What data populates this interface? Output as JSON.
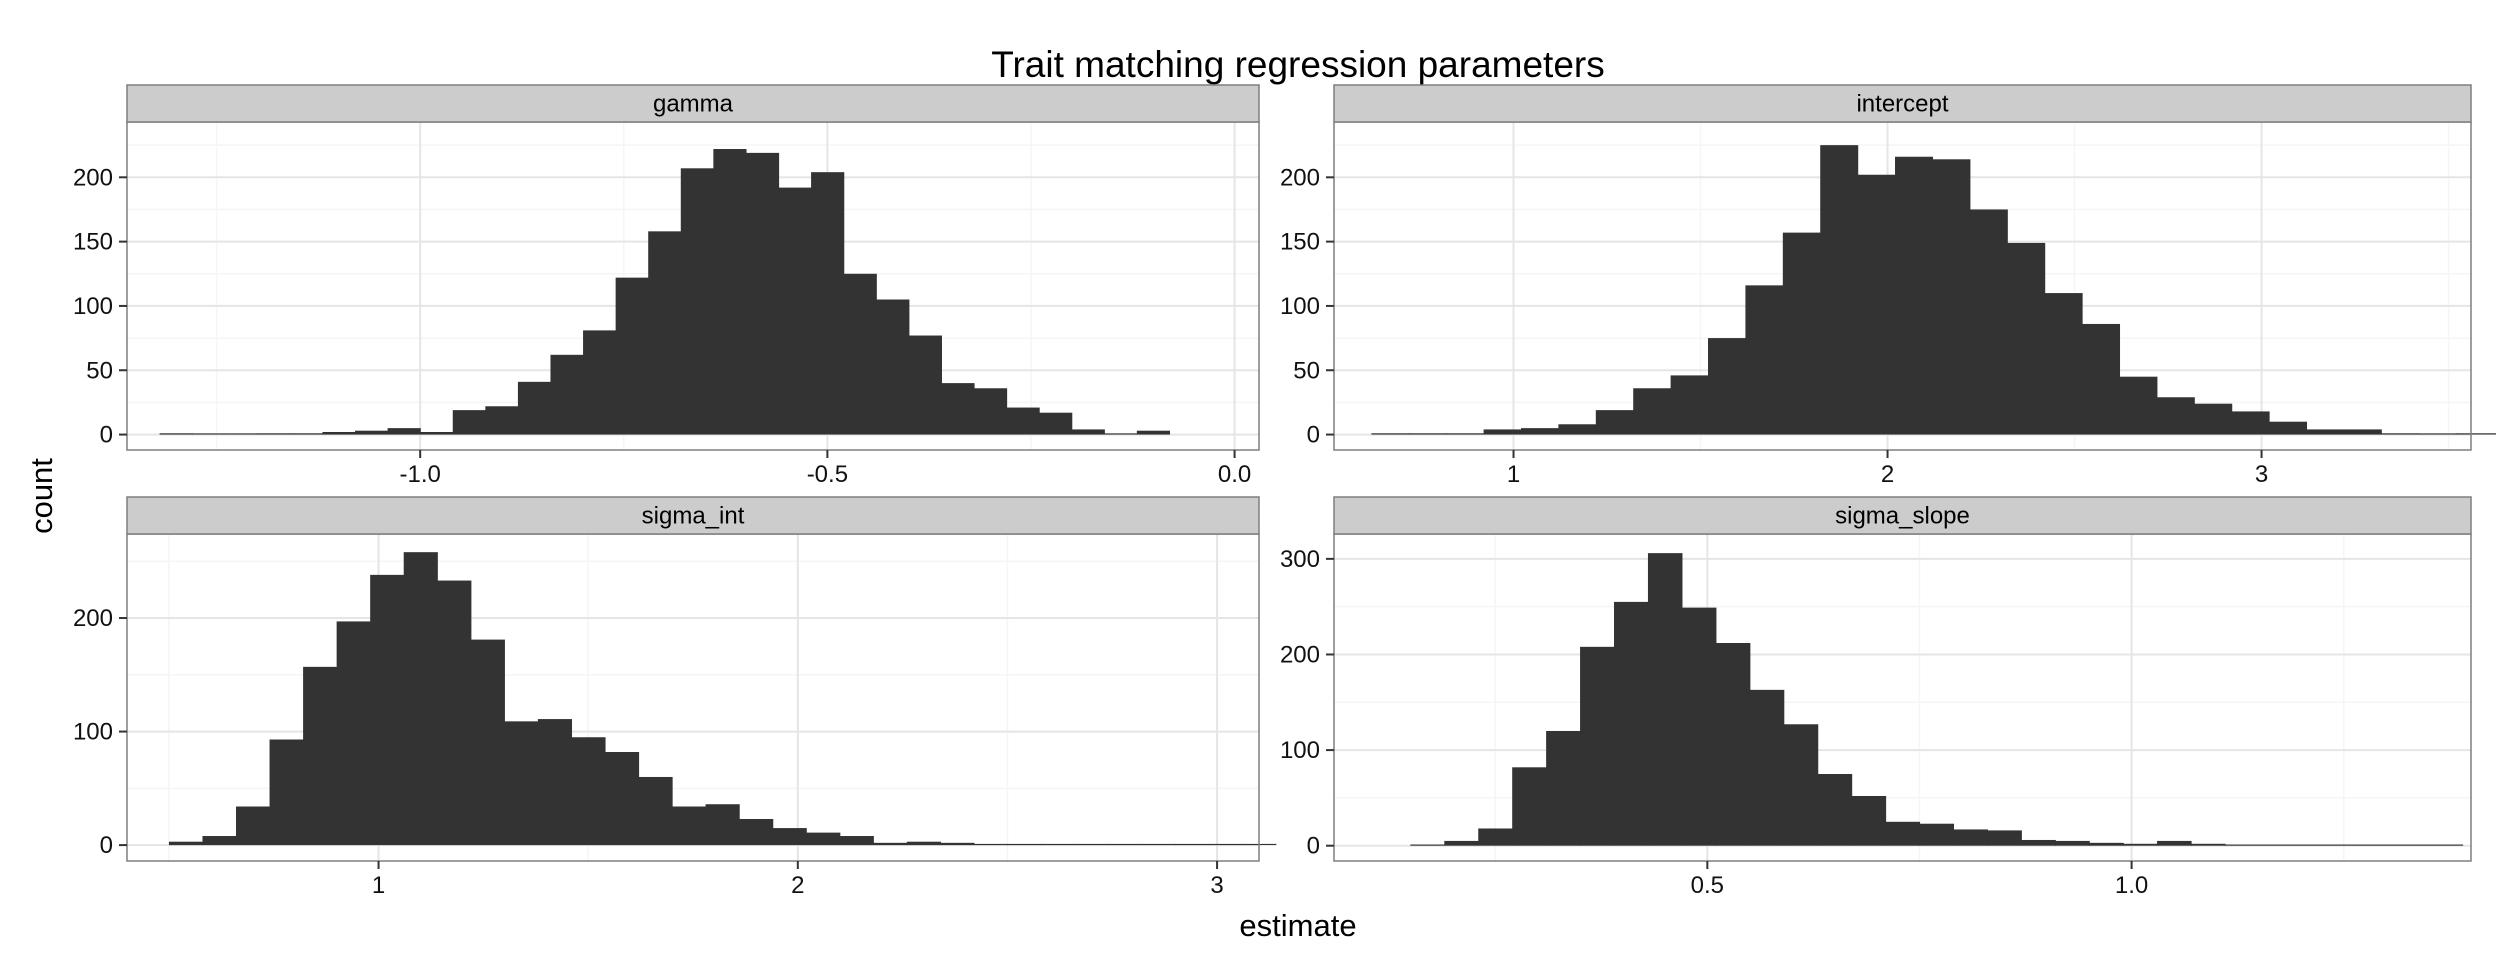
{
  "chart_data": {
    "type": "bar",
    "title": "Trait matching regression parameters",
    "xlabel": "estimate",
    "ylabel": "count",
    "grid": true,
    "legend": "none",
    "colors": {
      "bar": "#333333",
      "strip": "#cccccc",
      "panel_border": "#7f7f7f",
      "grid_major": "#e5e5e5",
      "grid_minor": "#f5f5f5"
    },
    "panels": [
      {
        "strip": "gamma",
        "xlim": [
          -1.36,
          0.03
        ],
        "ylim": [
          -12,
          243
        ],
        "xticks": [
          -1.0,
          -0.5,
          0.0
        ],
        "xtick_labels": [
          "-1.0",
          "-0.5",
          "0.0"
        ],
        "yticks": [
          0,
          50,
          100,
          150,
          200
        ],
        "ytick_labels": [
          "0",
          "50",
          "100",
          "150",
          "200"
        ],
        "bin_start": -1.32,
        "binwidth": 0.04,
        "counts": [
          1,
          0,
          0,
          1,
          1,
          2,
          3,
          5,
          2,
          19,
          22,
          41,
          62,
          81,
          122,
          158,
          207,
          222,
          219,
          192,
          204,
          125,
          105,
          77,
          40,
          36,
          21,
          17,
          4,
          0,
          3
        ]
      },
      {
        "strip": "intercept",
        "xlim": [
          0.52,
          3.56
        ],
        "ylim": [
          -12,
          243
        ],
        "xticks": [
          1,
          2,
          3
        ],
        "xtick_labels": [
          "1",
          "2",
          "3"
        ],
        "yticks": [
          0,
          50,
          100,
          150,
          200
        ],
        "ytick_labels": [
          "0",
          "50",
          "100",
          "150",
          "200"
        ],
        "bin_start": 0.62,
        "binwidth": 0.1,
        "counts": [
          1,
          1,
          1,
          4,
          5,
          8,
          19,
          36,
          46,
          75,
          116,
          157,
          225,
          202,
          216,
          214,
          175,
          149,
          110,
          86,
          45,
          29,
          24,
          18,
          10,
          4,
          4,
          1,
          0,
          1,
          1
        ]
      },
      {
        "strip": "sigma_int",
        "xlim": [
          0.4,
          3.1
        ],
        "ylim": [
          -14,
          274
        ],
        "xticks": [
          1,
          2,
          3
        ],
        "xtick_labels": [
          "1",
          "2",
          "3"
        ],
        "yticks": [
          0,
          100,
          200
        ],
        "ytick_labels": [
          "0",
          "100",
          "200"
        ],
        "bin_start": 0.5,
        "binwidth": 0.08,
        "counts": [
          3,
          8,
          34,
          93,
          157,
          197,
          238,
          258,
          233,
          181,
          109,
          111,
          95,
          82,
          60,
          34,
          36,
          23,
          15,
          11,
          8,
          2,
          3,
          2,
          0,
          1,
          1,
          0,
          0,
          0,
          0,
          0,
          1
        ]
      },
      {
        "strip": "sigma_slope",
        "xlim": [
          0.06,
          1.4
        ],
        "ylim": [
          -16,
          326
        ],
        "xticks": [
          0.5,
          1.0
        ],
        "xtick_labels": [
          "0.5",
          "1.0"
        ],
        "yticks": [
          0,
          100,
          200,
          300
        ],
        "ytick_labels": [
          "0",
          "100",
          "200",
          "300"
        ],
        "bin_start": 0.15,
        "binwidth": 0.04,
        "counts": [
          1,
          5,
          18,
          82,
          120,
          208,
          255,
          306,
          249,
          212,
          163,
          127,
          75,
          52,
          25,
          23,
          17,
          16,
          6,
          5,
          3,
          2,
          5,
          2,
          0,
          0,
          1,
          0,
          1,
          0,
          1
        ]
      }
    ]
  }
}
